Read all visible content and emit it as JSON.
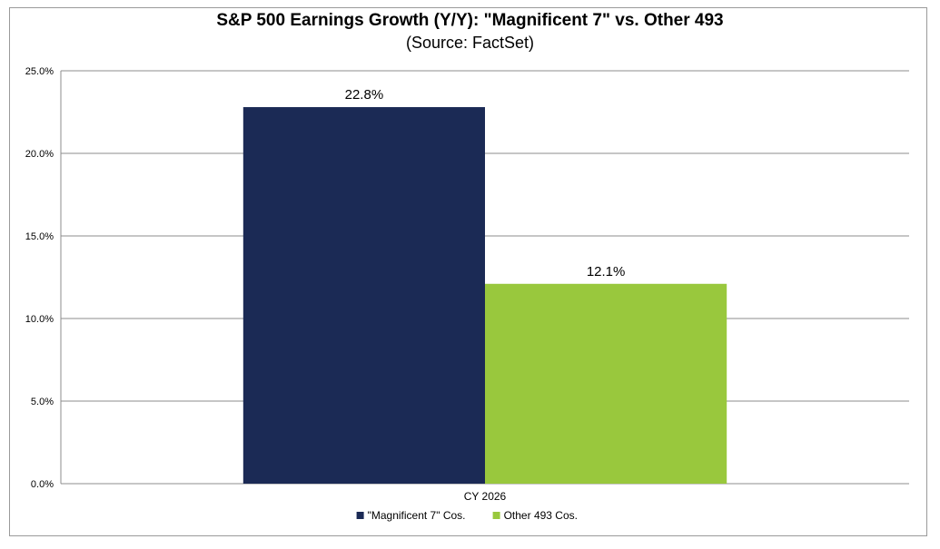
{
  "chart_data": {
    "type": "bar",
    "title": "S&P 500 Earnings Growth (Y/Y): \"Magnificent 7\" vs. Other 493",
    "subtitle": "(Source: FactSet)",
    "categories": [
      "CY 2026"
    ],
    "series": [
      {
        "name": "\"Magnificent 7\" Cos.",
        "values": [
          22.8
        ],
        "labels": [
          "22.8%"
        ],
        "color": "#1b2a55"
      },
      {
        "name": "Other 493 Cos.",
        "values": [
          12.1
        ],
        "labels": [
          "12.1%"
        ],
        "color": "#99c83d"
      }
    ],
    "ylim": [
      0,
      25
    ],
    "yticks": [
      "0.0%",
      "5.0%",
      "10.0%",
      "15.0%",
      "20.0%",
      "25.0%"
    ],
    "ytick_values": [
      0,
      5,
      10,
      15,
      20,
      25
    ],
    "grid": true,
    "legend": "bottom-center",
    "xlabel": "",
    "ylabel": ""
  }
}
